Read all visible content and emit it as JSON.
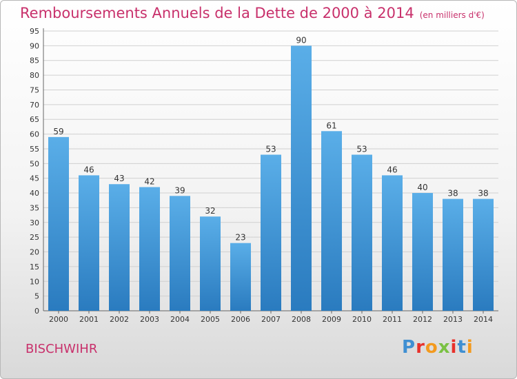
{
  "header": {
    "title": "Remboursements Annuels de la Dette de 2000 à 2014",
    "subtitle": "(en milliers d'€)"
  },
  "footer": {
    "place": "BISCHWIHR",
    "logo": "Proxiti"
  },
  "colors": {
    "title": "#c8306b",
    "bar_top": "#5aaee8",
    "bar_bottom": "#2a7bbf"
  },
  "chart_data": {
    "type": "bar",
    "title": "Remboursements Annuels de la Dette de 2000 à 2014",
    "categories": [
      "2000",
      "2001",
      "2002",
      "2003",
      "2004",
      "2005",
      "2006",
      "2007",
      "2008",
      "2009",
      "2010",
      "2011",
      "2012",
      "2013",
      "2014"
    ],
    "values": [
      59,
      46,
      43,
      42,
      39,
      32,
      23,
      53,
      90,
      61,
      53,
      46,
      40,
      38,
      38
    ],
    "ylim": [
      0,
      95
    ],
    "yticks": [
      0,
      5,
      10,
      15,
      20,
      25,
      30,
      35,
      40,
      45,
      50,
      55,
      60,
      65,
      70,
      75,
      80,
      85,
      90,
      95
    ],
    "grid": true,
    "data_labels": true
  }
}
